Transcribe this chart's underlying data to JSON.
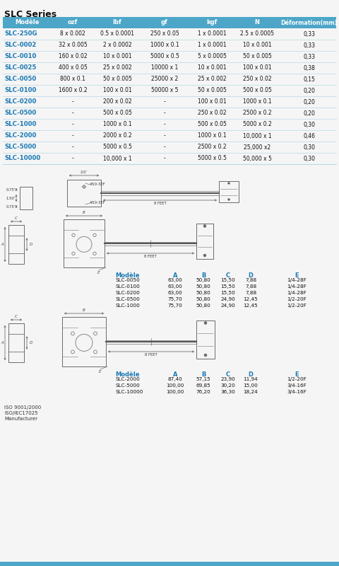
{
  "title": "SLC Series",
  "bg_color": "#f5f5f5",
  "header_bg": "#4da6c8",
  "header_text_color": "#ffffff",
  "row_text_color": "#000000",
  "model_color": "#1a7ab5",
  "table_headers": [
    "Modèle",
    "ozf",
    "lbf",
    "gf",
    "kgf",
    "N",
    "Déformation(mm)"
  ],
  "table_rows": [
    [
      "SLC-250G",
      "8 x 0.002",
      "0.5 x 0.0001",
      "250 x 0.05",
      "1 x 0.0001",
      "2.5 x 0.0005",
      "0,33"
    ],
    [
      "SLC-0002",
      "32 x 0.005",
      "2 x 0.0002",
      "1000 x 0.1",
      "1 x 0.0001",
      "10 x 0.001",
      "0,33"
    ],
    [
      "SLC-0010",
      "160 x 0.02",
      "10 x 0.001",
      "5000 x 0.5",
      "5 x 0.0005",
      "50 x 0.005",
      "0,33"
    ],
    [
      "SLC-0025",
      "400 x 0.05",
      "25 x 0.002",
      "10000 x 1",
      "10 x 0.001",
      "100 x 0.01",
      "0,38"
    ],
    [
      "SLC-0050",
      "800 x 0.1",
      "50 x 0.005",
      "25000 x 2",
      "25 x 0.002",
      "250 x 0.02",
      "0,15"
    ],
    [
      "SLC-0100",
      "1600 x 0.2",
      "100 x 0.01",
      "50000 x 5",
      "50 x 0.005",
      "500 x 0.05",
      "0,20"
    ],
    [
      "SLC-0200",
      "-",
      "200 x 0.02",
      "-",
      "100 x 0.01",
      "1000 x 0.1",
      "0,20"
    ],
    [
      "SLC-0500",
      "-",
      "500 x 0.05",
      "-",
      "250 x 0.02",
      "2500 x 0.2",
      "0,20"
    ],
    [
      "SLC-1000",
      "-",
      "1000 x 0.1",
      "-",
      "500 x 0.05",
      "5000 x 0.2",
      "0,30"
    ],
    [
      "SLC-2000",
      "-",
      "2000 x 0.2",
      "-",
      "1000 x 0.1",
      "10,000 x 1",
      "0,46"
    ],
    [
      "SLC-5000",
      "-",
      "5000 x 0.5",
      "-",
      "2500 x 0.2",
      "25,000 x2",
      "0,30"
    ],
    [
      "SLC-10000",
      "-",
      "10,000 x 1",
      "-",
      "5000 x 0.5",
      "50,000 x 5",
      "0,30"
    ]
  ],
  "dim_table1_header": [
    "Modèle",
    "A",
    "B",
    "C",
    "D",
    "E"
  ],
  "dim_table1_rows": [
    [
      "SLC-0050",
      "63,00",
      "50,80",
      "15,50",
      "7,88",
      "1/4-28F"
    ],
    [
      "SLC-0100",
      "63,00",
      "50,80",
      "15,50",
      "7,88",
      "1/4-28F"
    ],
    [
      "SLC-0200",
      "63,00",
      "50,80",
      "15,50",
      "7,88",
      "1/4-28F"
    ],
    [
      "SLC-0500",
      "75,70",
      "50,80",
      "24,90",
      "12,45",
      "1/2-20F"
    ],
    [
      "SLC-1000",
      "75,70",
      "50,80",
      "24,90",
      "12,45",
      "1/2-20F"
    ]
  ],
  "dim_table2_header": [
    "Modèle",
    "A",
    "B",
    "C",
    "D",
    "E"
  ],
  "dim_table2_rows": [
    [
      "SLC-2000",
      "87,40",
      "57,15",
      "23,90",
      "11,94",
      "1/2-20F"
    ],
    [
      "SLC-5000",
      "100,00",
      "69,85",
      "30,20",
      "15,00",
      "3/4-16F"
    ],
    [
      "SLC-10000",
      "100,00",
      "76,20",
      "36,30",
      "18,24",
      "3/4-16F"
    ]
  ],
  "footer_lines": [
    "ISO 9001/2000",
    "ISO/IEC17025",
    "Manufacturer"
  ],
  "bottom_bar_color": "#4da6c8"
}
